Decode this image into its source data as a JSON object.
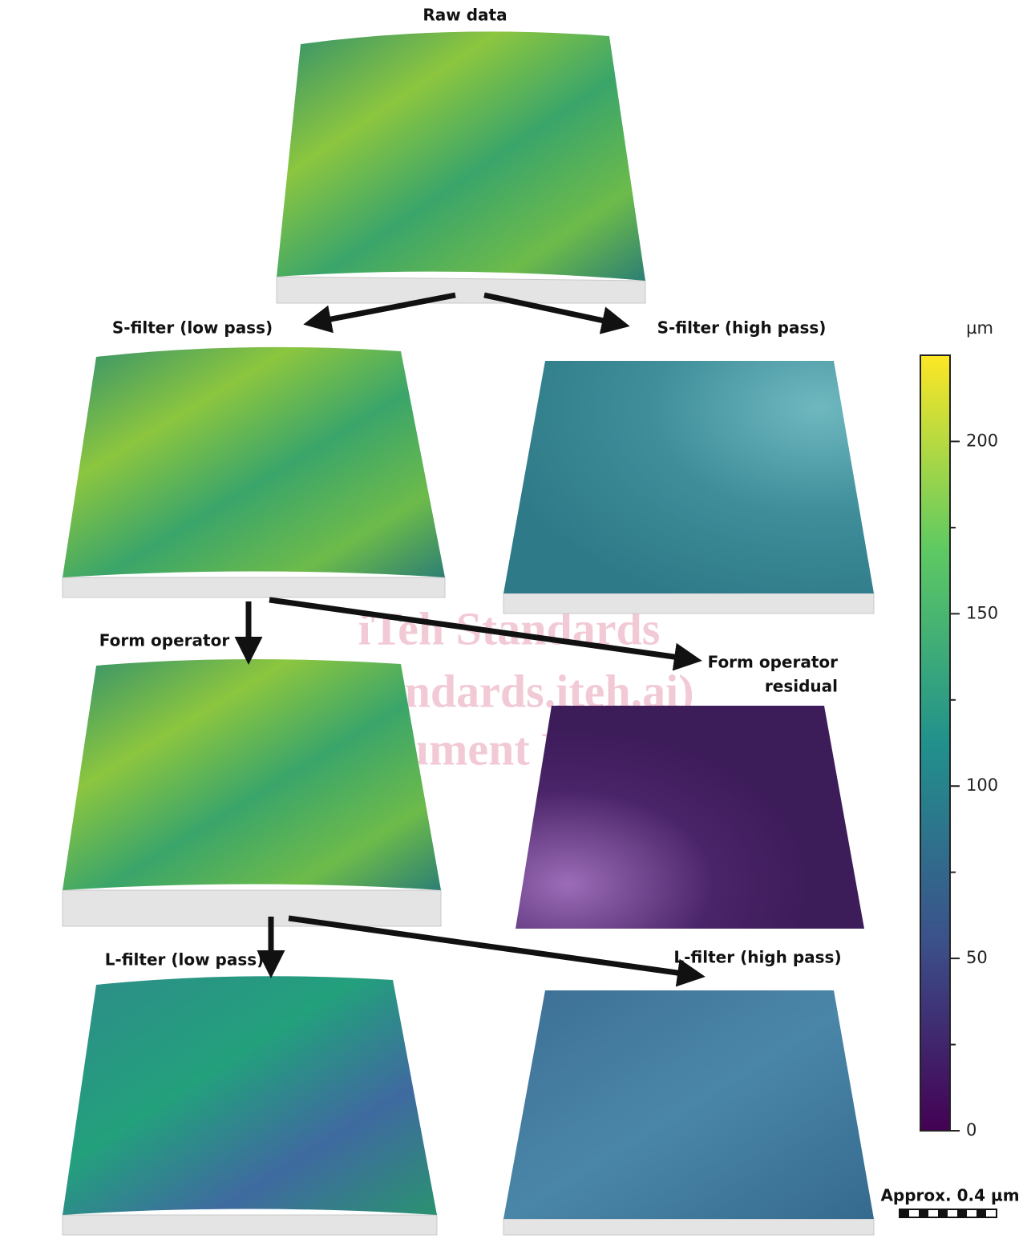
{
  "panels": {
    "raw": {
      "label": "Raw data"
    },
    "s_low": {
      "label": "S-filter (low pass)"
    },
    "s_high": {
      "label": "S-filter (high pass)"
    },
    "form": {
      "label": "Form operator"
    },
    "form_residual": {
      "label": [
        "Form operator",
        "residual"
      ]
    },
    "l_low": {
      "label": "L-filter (low pass)"
    },
    "l_high": {
      "label": "L-filter (high pass)"
    }
  },
  "colorbar": {
    "unit": "µm",
    "min": 0,
    "max": 225,
    "ticks": [
      0,
      50,
      100,
      150,
      200
    ],
    "minor_ticks": [
      25,
      75,
      125,
      175
    ]
  },
  "scale_bar": {
    "label": "Approx. 0.4 µm"
  },
  "watermark": [
    "iTeh Standards",
    "(standards.iteh.ai)",
    "Document Preview"
  ]
}
